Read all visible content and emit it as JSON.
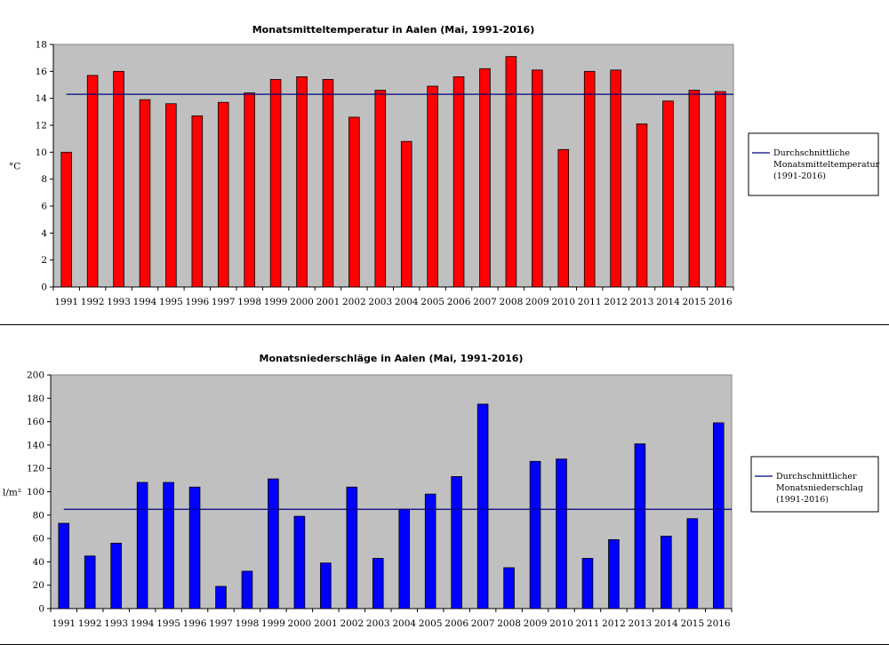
{
  "colors": {
    "plot_bg": "#c0c0c0",
    "temp_bar": "#ff0000",
    "precip_bar": "#0000ff",
    "avg_line": "#000080",
    "gridline": "#000000",
    "separator": "#000000"
  },
  "chart_data": [
    {
      "type": "bar",
      "title": "Monatsmitteltemperatur in Aalen (Mai, 1991-2016)",
      "ylabel": "°C",
      "xlabel": "",
      "ylim": [
        0,
        18
      ],
      "yticks": [
        0,
        2,
        4,
        6,
        8,
        10,
        12,
        14,
        16,
        18
      ],
      "grid": true,
      "categories": [
        "1991",
        "1992",
        "1993",
        "1994",
        "1995",
        "1996",
        "1997",
        "1998",
        "1999",
        "2000",
        "2001",
        "2002",
        "2003",
        "2004",
        "2005",
        "2006",
        "2007",
        "2008",
        "2009",
        "2010",
        "2011",
        "2012",
        "2013",
        "2014",
        "2015",
        "2016"
      ],
      "series": [
        {
          "name": "Temperatur",
          "values": [
            10.0,
            15.7,
            16.0,
            13.9,
            13.6,
            12.7,
            13.7,
            14.4,
            15.4,
            15.6,
            15.4,
            12.6,
            14.6,
            10.8,
            14.9,
            15.6,
            16.2,
            17.1,
            16.1,
            10.2,
            16.0,
            16.1,
            12.1,
            13.8,
            14.6,
            14.5
          ]
        }
      ],
      "average": {
        "value": 14.3,
        "legend": [
          "Durchschnittliche",
          "Monatsmitteltemperatur",
          "(1991-2016)"
        ]
      }
    },
    {
      "type": "bar",
      "title": "Monatsniederschläge in Aalen (Mai, 1991-2016)",
      "ylabel": "l/m²",
      "xlabel": "",
      "ylim": [
        0,
        200
      ],
      "yticks": [
        0,
        20,
        40,
        60,
        80,
        100,
        120,
        140,
        160,
        180,
        200
      ],
      "grid": true,
      "categories": [
        "1991",
        "1992",
        "1993",
        "1994",
        "1995",
        "1996",
        "1997",
        "1998",
        "1999",
        "2000",
        "2001",
        "2002",
        "2003",
        "2004",
        "2005",
        "2006",
        "2007",
        "2008",
        "2009",
        "2010",
        "2011",
        "2012",
        "2013",
        "2014",
        "2015",
        "2016"
      ],
      "series": [
        {
          "name": "Niederschlag",
          "values": [
            73,
            45,
            56,
            108,
            108,
            104,
            19,
            32,
            111,
            79,
            39,
            104,
            43,
            85,
            98,
            113,
            175,
            35,
            126,
            128,
            43,
            59,
            141,
            62,
            77,
            159
          ]
        }
      ],
      "average": {
        "value": 85,
        "legend": [
          "Durchschnittlicher",
          "Monatsniederschlag",
          "(1991-2016)"
        ]
      }
    }
  ]
}
